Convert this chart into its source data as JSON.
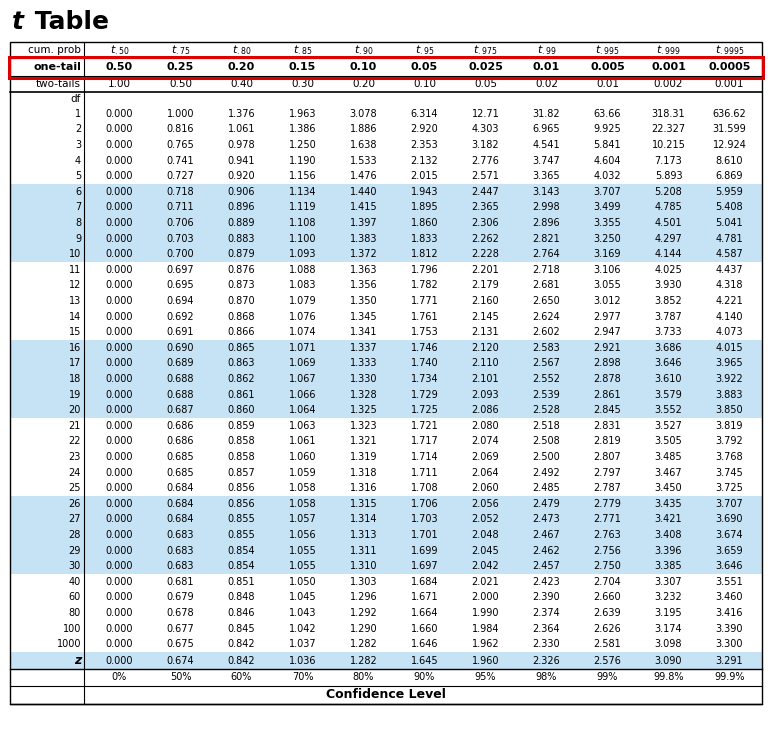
{
  "title_italic": "t",
  "title_bold": " Table",
  "one_tail_label": "one-tail",
  "one_tail_values": [
    "0.50",
    "0.25",
    "0.20",
    "0.15",
    "0.10",
    "0.05",
    "0.025",
    "0.01",
    "0.005",
    "0.001",
    "0.0005"
  ],
  "two_tails_label": "two-tails",
  "two_tails_values": [
    "1.00",
    "0.50",
    "0.40",
    "0.30",
    "0.20",
    "0.10",
    "0.05",
    "0.02",
    "0.01",
    "0.002",
    "0.001"
  ],
  "t_subs": [
    ".50",
    ".75",
    ".80",
    ".85",
    ".90",
    ".95",
    ".975",
    ".99",
    ".995",
    ".999",
    ".9995"
  ],
  "df_label": "df",
  "rows": [
    [
      "1",
      "0.000",
      "1.000",
      "1.376",
      "1.963",
      "3.078",
      "6.314",
      "12.71",
      "31.82",
      "63.66",
      "318.31",
      "636.62"
    ],
    [
      "2",
      "0.000",
      "0.816",
      "1.061",
      "1.386",
      "1.886",
      "2.920",
      "4.303",
      "6.965",
      "9.925",
      "22.327",
      "31.599"
    ],
    [
      "3",
      "0.000",
      "0.765",
      "0.978",
      "1.250",
      "1.638",
      "2.353",
      "3.182",
      "4.541",
      "5.841",
      "10.215",
      "12.924"
    ],
    [
      "4",
      "0.000",
      "0.741",
      "0.941",
      "1.190",
      "1.533",
      "2.132",
      "2.776",
      "3.747",
      "4.604",
      "7.173",
      "8.610"
    ],
    [
      "5",
      "0.000",
      "0.727",
      "0.920",
      "1.156",
      "1.476",
      "2.015",
      "2.571",
      "3.365",
      "4.032",
      "5.893",
      "6.869"
    ],
    [
      "6",
      "0.000",
      "0.718",
      "0.906",
      "1.134",
      "1.440",
      "1.943",
      "2.447",
      "3.143",
      "3.707",
      "5.208",
      "5.959"
    ],
    [
      "7",
      "0.000",
      "0.711",
      "0.896",
      "1.119",
      "1.415",
      "1.895",
      "2.365",
      "2.998",
      "3.499",
      "4.785",
      "5.408"
    ],
    [
      "8",
      "0.000",
      "0.706",
      "0.889",
      "1.108",
      "1.397",
      "1.860",
      "2.306",
      "2.896",
      "3.355",
      "4.501",
      "5.041"
    ],
    [
      "9",
      "0.000",
      "0.703",
      "0.883",
      "1.100",
      "1.383",
      "1.833",
      "2.262",
      "2.821",
      "3.250",
      "4.297",
      "4.781"
    ],
    [
      "10",
      "0.000",
      "0.700",
      "0.879",
      "1.093",
      "1.372",
      "1.812",
      "2.228",
      "2.764",
      "3.169",
      "4.144",
      "4.587"
    ],
    [
      "11",
      "0.000",
      "0.697",
      "0.876",
      "1.088",
      "1.363",
      "1.796",
      "2.201",
      "2.718",
      "3.106",
      "4.025",
      "4.437"
    ],
    [
      "12",
      "0.000",
      "0.695",
      "0.873",
      "1.083",
      "1.356",
      "1.782",
      "2.179",
      "2.681",
      "3.055",
      "3.930",
      "4.318"
    ],
    [
      "13",
      "0.000",
      "0.694",
      "0.870",
      "1.079",
      "1.350",
      "1.771",
      "2.160",
      "2.650",
      "3.012",
      "3.852",
      "4.221"
    ],
    [
      "14",
      "0.000",
      "0.692",
      "0.868",
      "1.076",
      "1.345",
      "1.761",
      "2.145",
      "2.624",
      "2.977",
      "3.787",
      "4.140"
    ],
    [
      "15",
      "0.000",
      "0.691",
      "0.866",
      "1.074",
      "1.341",
      "1.753",
      "2.131",
      "2.602",
      "2.947",
      "3.733",
      "4.073"
    ],
    [
      "16",
      "0.000",
      "0.690",
      "0.865",
      "1.071",
      "1.337",
      "1.746",
      "2.120",
      "2.583",
      "2.921",
      "3.686",
      "4.015"
    ],
    [
      "17",
      "0.000",
      "0.689",
      "0.863",
      "1.069",
      "1.333",
      "1.740",
      "2.110",
      "2.567",
      "2.898",
      "3.646",
      "3.965"
    ],
    [
      "18",
      "0.000",
      "0.688",
      "0.862",
      "1.067",
      "1.330",
      "1.734",
      "2.101",
      "2.552",
      "2.878",
      "3.610",
      "3.922"
    ],
    [
      "19",
      "0.000",
      "0.688",
      "0.861",
      "1.066",
      "1.328",
      "1.729",
      "2.093",
      "2.539",
      "2.861",
      "3.579",
      "3.883"
    ],
    [
      "20",
      "0.000",
      "0.687",
      "0.860",
      "1.064",
      "1.325",
      "1.725",
      "2.086",
      "2.528",
      "2.845",
      "3.552",
      "3.850"
    ],
    [
      "21",
      "0.000",
      "0.686",
      "0.859",
      "1.063",
      "1.323",
      "1.721",
      "2.080",
      "2.518",
      "2.831",
      "3.527",
      "3.819"
    ],
    [
      "22",
      "0.000",
      "0.686",
      "0.858",
      "1.061",
      "1.321",
      "1.717",
      "2.074",
      "2.508",
      "2.819",
      "3.505",
      "3.792"
    ],
    [
      "23",
      "0.000",
      "0.685",
      "0.858",
      "1.060",
      "1.319",
      "1.714",
      "2.069",
      "2.500",
      "2.807",
      "3.485",
      "3.768"
    ],
    [
      "24",
      "0.000",
      "0.685",
      "0.857",
      "1.059",
      "1.318",
      "1.711",
      "2.064",
      "2.492",
      "2.797",
      "3.467",
      "3.745"
    ],
    [
      "25",
      "0.000",
      "0.684",
      "0.856",
      "1.058",
      "1.316",
      "1.708",
      "2.060",
      "2.485",
      "2.787",
      "3.450",
      "3.725"
    ],
    [
      "26",
      "0.000",
      "0.684",
      "0.856",
      "1.058",
      "1.315",
      "1.706",
      "2.056",
      "2.479",
      "2.779",
      "3.435",
      "3.707"
    ],
    [
      "27",
      "0.000",
      "0.684",
      "0.855",
      "1.057",
      "1.314",
      "1.703",
      "2.052",
      "2.473",
      "2.771",
      "3.421",
      "3.690"
    ],
    [
      "28",
      "0.000",
      "0.683",
      "0.855",
      "1.056",
      "1.313",
      "1.701",
      "2.048",
      "2.467",
      "2.763",
      "3.408",
      "3.674"
    ],
    [
      "29",
      "0.000",
      "0.683",
      "0.854",
      "1.055",
      "1.311",
      "1.699",
      "2.045",
      "2.462",
      "2.756",
      "3.396",
      "3.659"
    ],
    [
      "30",
      "0.000",
      "0.683",
      "0.854",
      "1.055",
      "1.310",
      "1.697",
      "2.042",
      "2.457",
      "2.750",
      "3.385",
      "3.646"
    ],
    [
      "40",
      "0.000",
      "0.681",
      "0.851",
      "1.050",
      "1.303",
      "1.684",
      "2.021",
      "2.423",
      "2.704",
      "3.307",
      "3.551"
    ],
    [
      "60",
      "0.000",
      "0.679",
      "0.848",
      "1.045",
      "1.296",
      "1.671",
      "2.000",
      "2.390",
      "2.660",
      "3.232",
      "3.460"
    ],
    [
      "80",
      "0.000",
      "0.678",
      "0.846",
      "1.043",
      "1.292",
      "1.664",
      "1.990",
      "2.374",
      "2.639",
      "3.195",
      "3.416"
    ],
    [
      "100",
      "0.000",
      "0.677",
      "0.845",
      "1.042",
      "1.290",
      "1.660",
      "1.984",
      "2.364",
      "2.626",
      "3.174",
      "3.390"
    ],
    [
      "1000",
      "0.000",
      "0.675",
      "0.842",
      "1.037",
      "1.282",
      "1.646",
      "1.962",
      "2.330",
      "2.581",
      "3.098",
      "3.300"
    ]
  ],
  "z_row": [
    "z",
    "0.000",
    "0.674",
    "0.842",
    "1.036",
    "1.282",
    "1.645",
    "1.960",
    "2.326",
    "2.576",
    "3.090",
    "3.291"
  ],
  "conf_level_labels": [
    "0%",
    "50%",
    "60%",
    "70%",
    "80%",
    "90%",
    "95%",
    "98%",
    "99%",
    "99.8%",
    "99.9%"
  ],
  "conf_level_title": "Confidence Level",
  "blue_rows_df": [
    6,
    7,
    8,
    9,
    10,
    16,
    17,
    18,
    19,
    20,
    26,
    27,
    28,
    29,
    30
  ],
  "light_blue": "#c6e2f5",
  "background_color": "#ffffff",
  "title_fontsize": 18,
  "header_fontsize": 7.5,
  "data_fontsize": 7.5,
  "red_border_color": "#dd0000",
  "line_color": "#000000"
}
